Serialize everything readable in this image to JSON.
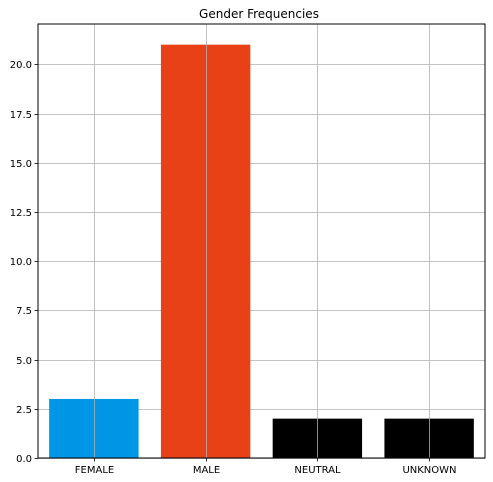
{
  "chart_data": {
    "type": "bar",
    "title": "Gender Frequencies",
    "xlabel": "",
    "ylabel": "",
    "categories": [
      "FEMALE",
      "MALE",
      "NEUTRAL",
      "UNKNOWN"
    ],
    "values": [
      3,
      21,
      2,
      2
    ],
    "colors": [
      "#0096e6",
      "#e84118",
      "#000000",
      "#000000"
    ],
    "ylim": [
      0,
      22.05
    ],
    "yticks": [
      0.0,
      2.5,
      5.0,
      7.5,
      10.0,
      12.5,
      15.0,
      17.5,
      20.0
    ],
    "ytick_labels": [
      "0.0",
      "2.5",
      "5.0",
      "7.5",
      "10.0",
      "12.5",
      "15.0",
      "17.5",
      "20.0"
    ],
    "grid": true,
    "legend": "none"
  }
}
